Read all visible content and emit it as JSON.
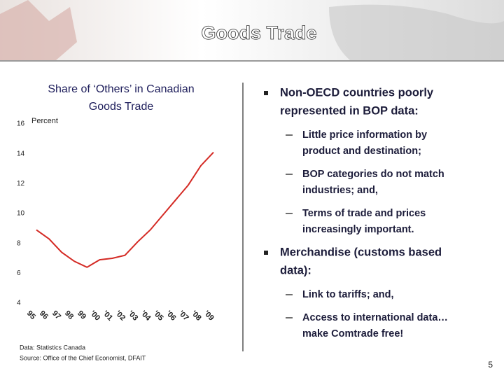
{
  "slide_title": "Goods Trade",
  "chart_data": {
    "type": "line",
    "title": [
      "Share of ‘Others’ in Canadian",
      "Goods Trade"
    ],
    "y_label": "Percent",
    "categories": [
      "95",
      "96",
      "97",
      "98",
      "99",
      "'00",
      "'01",
      "'02",
      "'03",
      "'04",
      "'05",
      "'06",
      "'07",
      "'08",
      "'09"
    ],
    "values": [
      8.9,
      8.3,
      7.4,
      6.8,
      6.4,
      6.9,
      7.0,
      7.2,
      8.1,
      8.9,
      9.9,
      10.9,
      11.9,
      13.2,
      14.1
    ],
    "color": "#d42a24",
    "ylim": [
      4,
      16
    ],
    "yticks": [
      4,
      6,
      8,
      10,
      12,
      14,
      16
    ],
    "grid": false
  },
  "bullets": [
    {
      "lines": [
        "Non-OECD countries poorly",
        "represented in BOP data:"
      ],
      "subs": [
        {
          "lines": [
            "Little price information by",
            "product and destination;"
          ]
        },
        {
          "lines": [
            "BOP categories do not match",
            "industries; and,"
          ]
        },
        {
          "lines": [
            "Terms of trade and prices",
            "increasingly important."
          ]
        }
      ]
    },
    {
      "lines": [
        "Merchandise (customs based",
        "data):"
      ],
      "subs": [
        {
          "lines": [
            "Link to tariffs; and,"
          ]
        },
        {
          "lines": [
            "Access to international data…",
            "make Comtrade free!"
          ]
        }
      ]
    }
  ],
  "source_lines": [
    "Data: Statistics Canada",
    "Source: Office of the Chief Economist, DFAIT"
  ],
  "page_number": "5"
}
